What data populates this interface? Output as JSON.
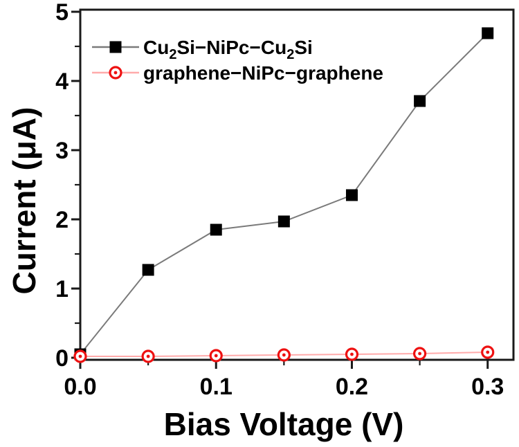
{
  "page": {
    "background": "#ffffff"
  },
  "chart_data": {
    "type": "line",
    "title": "",
    "xlabel": "Bias Voltage (V)",
    "ylabel": "Current (μA)",
    "grid": false,
    "legend_position": "top-left",
    "axis_color": "#1a1a1a",
    "text_color": "#000000",
    "xlim": [
      0,
      0.319
    ],
    "ylim": [
      -0.03,
      5.03
    ],
    "x": [
      0.0,
      0.05,
      0.1,
      0.15,
      0.2,
      0.25,
      0.3
    ],
    "series": [
      {
        "name": "Cu2Si−NiPc−Cu2Si",
        "label_parts": [
          {
            "t": "Cu"
          },
          {
            "sub": "2"
          },
          {
            "t": "Si−NiPc−Cu"
          },
          {
            "sub": "2"
          },
          {
            "t": "Si"
          }
        ],
        "marker": "filled-square",
        "marker_color": "#000000",
        "line_color": "#7a7a7a",
        "values": [
          0.05,
          1.27,
          1.85,
          1.97,
          2.35,
          3.71,
          4.69
        ]
      },
      {
        "name": "graphene−NiPc−graphene",
        "label_parts": [
          {
            "t": "graphene−NiPc−graphene"
          }
        ],
        "marker": "open-circle-dot",
        "marker_color": "#ee1111",
        "line_color": "#ffaaaa",
        "values": [
          0.02,
          0.02,
          0.03,
          0.04,
          0.05,
          0.06,
          0.08
        ]
      }
    ],
    "xticks": {
      "major": [
        0.0,
        0.1,
        0.2,
        0.3
      ],
      "major_labels": [
        "0.0",
        "0.1",
        "0.2",
        "0.3"
      ],
      "minor": [
        0.05,
        0.15,
        0.25
      ]
    },
    "yticks": {
      "major": [
        0,
        1,
        2,
        3,
        4,
        5
      ],
      "major_labels": [
        "0",
        "1",
        "2",
        "3",
        "4",
        "5"
      ],
      "minor": [
        0.5,
        1.5,
        2.5,
        3.5,
        4.5
      ]
    }
  }
}
